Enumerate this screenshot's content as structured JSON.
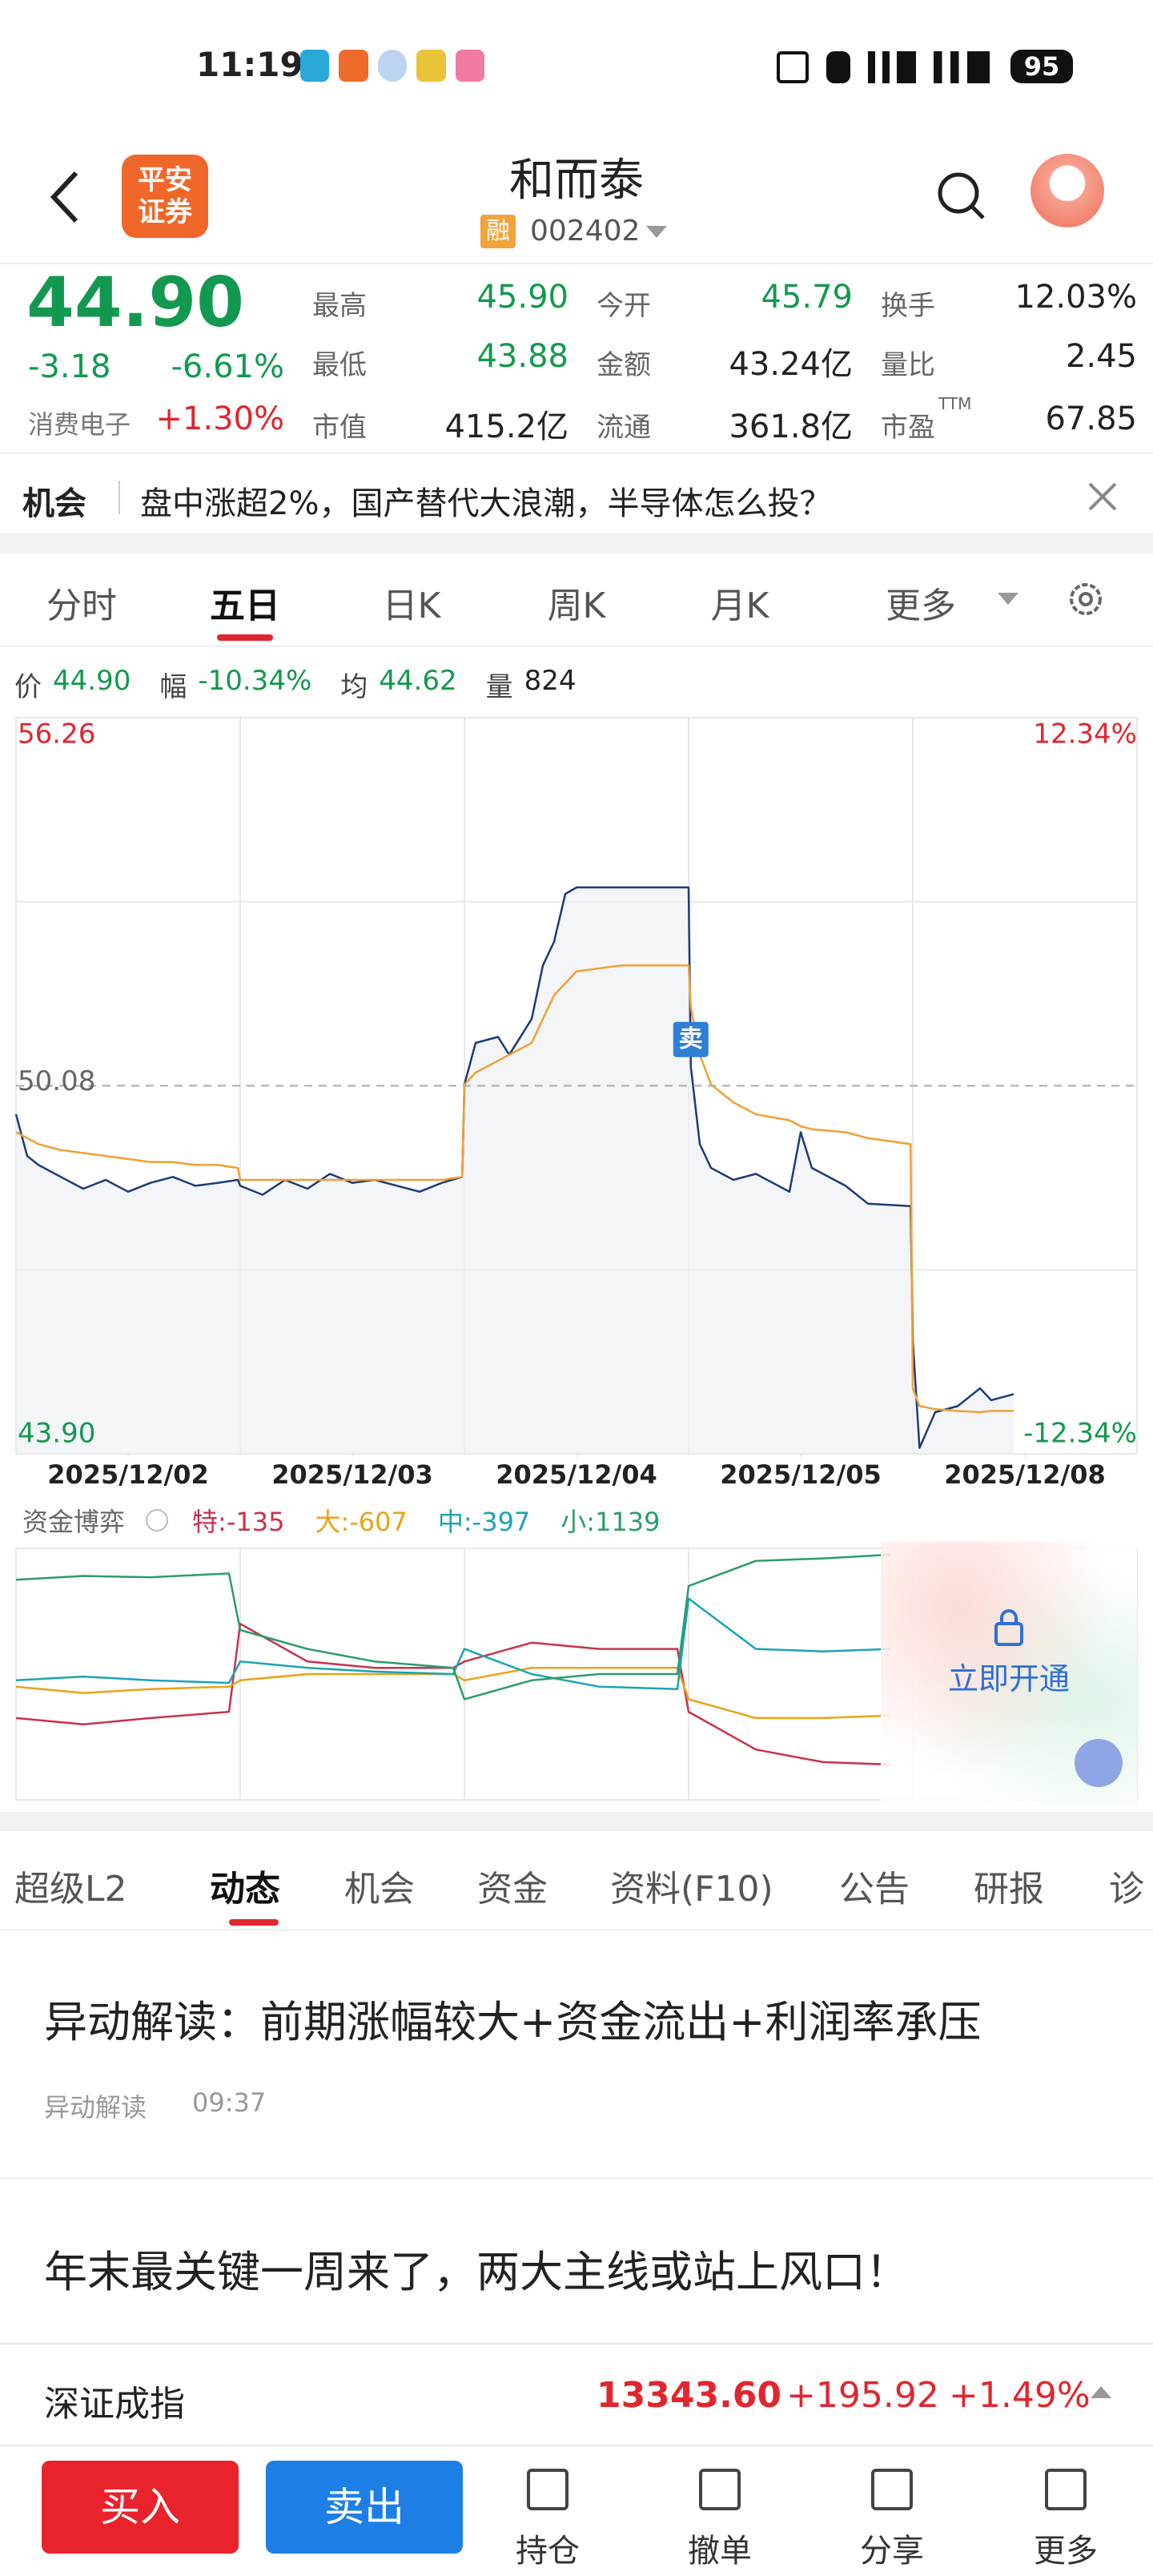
{
  "status_bar": {
    "time": "11:19",
    "battery": "95"
  },
  "header": {
    "logo": [
      "平安",
      "证券"
    ],
    "title": "和而泰",
    "badge": "融",
    "code": "002402"
  },
  "quote": {
    "price": "44.90",
    "change": "-3.18",
    "change_pct": "-6.61%",
    "sector": "消费电子",
    "sector_change": "+1.30%",
    "stats": [
      {
        "label": "最高",
        "value": "45.90"
      },
      {
        "label": "今开",
        "value": "45.79"
      },
      {
        "label": "换手",
        "value": "12.03%"
      },
      {
        "label": "最低",
        "value": "43.88"
      },
      {
        "label": "金额",
        "value": "43.24亿"
      },
      {
        "label": "量比",
        "value": "2.45"
      },
      {
        "label": "市值",
        "value": "415.2亿"
      },
      {
        "label": "流通",
        "value": "361.8亿"
      },
      {
        "label": "市盈",
        "sup": "TTM",
        "value": "67.85"
      }
    ]
  },
  "banner": {
    "tag": "机会",
    "text": "盘中涨超2%，国产替代大浪潮，半导体怎么投？"
  },
  "chart_tabs": {
    "items": [
      "分时",
      "五日",
      "日K",
      "周K",
      "月K",
      "更多"
    ],
    "active": 1
  },
  "chart_info": [
    {
      "label": "价",
      "value": "44.90"
    },
    {
      "label": "幅",
      "value": "-10.34%"
    },
    {
      "label": "均",
      "value": "44.62"
    },
    {
      "label": "量",
      "value": "824"
    }
  ],
  "chart_data": [
    {
      "type": "line",
      "x": [
        0,
        0.05,
        0.1,
        0.2,
        0.3,
        0.4,
        0.5,
        0.6,
        0.7,
        0.8,
        0.9,
        0.99,
        1,
        1.1,
        1.2,
        1.3,
        1.4,
        1.5,
        1.6,
        1.7,
        1.8,
        1.9,
        1.99,
        2,
        2.05,
        2.15,
        2.2,
        2.3,
        2.35,
        2.4,
        2.45,
        2.5,
        2.7,
        2.99,
        3,
        3.01,
        3.05,
        3.1,
        3.2,
        3.3,
        3.45,
        3.5,
        3.55,
        3.7,
        3.8,
        3.99,
        4,
        4.03,
        4.1,
        4.2,
        4.3,
        4.35,
        4.45
      ],
      "xlim": [
        0,
        5
      ],
      "xticks": [
        {
          "value": 0.5,
          "label": "2025/12/02"
        },
        {
          "value": 1.5,
          "label": "2025/12/03"
        },
        {
          "value": 2.5,
          "label": "2025/12/04"
        },
        {
          "value": 3.5,
          "label": "2025/12/05"
        },
        {
          "value": 4.5,
          "label": "2025/12/08"
        }
      ],
      "ylim": [
        43.9,
        56.26
      ],
      "yticks": [
        56.26,
        50.08,
        {
          "value": 43.9,
          "label": "43.90"
        }
      ],
      "y2lim": [
        -12.34,
        12.34
      ],
      "y2ticks": [
        {
          "value": 12.34,
          "label": "12.34%"
        },
        {
          "value": -12.34,
          "label": "-12.34%"
        }
      ],
      "sell_marker": "卖",
      "series": [
        {
          "color": "#1d3a7a",
          "area": true,
          "values": [
            49.6,
            48.9,
            48.75,
            48.55,
            48.35,
            48.5,
            48.3,
            48.45,
            48.55,
            48.4,
            48.45,
            48.5,
            48.4,
            48.25,
            48.5,
            48.35,
            48.6,
            48.45,
            48.5,
            48.4,
            48.3,
            48.45,
            48.55,
            50.1,
            50.8,
            50.9,
            50.6,
            51.2,
            52.1,
            52.5,
            53.3,
            53.41,
            53.41,
            53.41,
            53.41,
            50.4,
            49.1,
            48.7,
            48.5,
            48.6,
            48.3,
            49.3,
            48.7,
            48.4,
            48.1,
            48.06,
            45.8,
            44.0,
            44.6,
            44.7,
            45.0,
            44.8,
            44.9
          ]
        },
        {
          "color": "#f0a030",
          "values": [
            49.3,
            49.2,
            49.1,
            49.0,
            48.95,
            48.9,
            48.85,
            48.8,
            48.8,
            48.75,
            48.75,
            48.7,
            48.5,
            48.5,
            48.5,
            48.5,
            48.5,
            48.5,
            48.5,
            48.5,
            48.5,
            48.5,
            48.55,
            50.1,
            50.3,
            50.5,
            50.6,
            50.8,
            51.2,
            51.6,
            51.8,
            52.0,
            52.1,
            52.1,
            52.1,
            51.4,
            50.6,
            50.1,
            49.8,
            49.6,
            49.5,
            49.4,
            49.35,
            49.3,
            49.2,
            49.1,
            45.0,
            44.7,
            44.65,
            44.62,
            44.6,
            44.62,
            44.62
          ]
        }
      ]
    },
    {
      "type": "line",
      "title": "资金博弈",
      "x": [
        0,
        0.3,
        0.6,
        0.95,
        1,
        1.3,
        1.6,
        1.95,
        2,
        2.3,
        2.6,
        2.95,
        3,
        3.3,
        3.6,
        3.9
      ],
      "xlim": [
        0,
        5
      ],
      "ylim": [
        -1,
        1
      ],
      "unlock": "立即开通",
      "series": [
        {
          "name": "特:",
          "total": -135,
          "color": "#c8324b",
          "values": [
            -0.35,
            -0.4,
            -0.35,
            -0.3,
            0.4,
            0.1,
            0.05,
            0.05,
            0.1,
            0.25,
            0.2,
            0.2,
            -0.3,
            -0.6,
            -0.7,
            -0.72
          ]
        },
        {
          "name": "大:",
          "total": -607,
          "color": "#e8a317",
          "values": [
            -0.1,
            -0.15,
            -0.12,
            -0.1,
            -0.05,
            0.0,
            0.0,
            0.0,
            -0.05,
            0.05,
            0.05,
            0.05,
            -0.2,
            -0.35,
            -0.35,
            -0.33
          ]
        },
        {
          "name": "中:",
          "total": -397,
          "color": "#1aa3b5",
          "values": [
            -0.05,
            -0.02,
            -0.05,
            -0.07,
            0.1,
            0.05,
            0.02,
            0.0,
            0.2,
            0.0,
            -0.1,
            -0.12,
            0.6,
            0.2,
            0.18,
            0.2
          ]
        },
        {
          "name": "小:",
          "total": 1139,
          "color": "#2a9d6a",
          "values": [
            0.75,
            0.78,
            0.77,
            0.8,
            0.35,
            0.2,
            0.1,
            0.05,
            -0.2,
            -0.05,
            0.0,
            0.0,
            0.7,
            0.9,
            0.92,
            0.95
          ]
        }
      ]
    }
  ],
  "content_tabs": {
    "items": [
      "超级L2",
      "动态",
      "机会",
      "资金",
      "资料(F10)",
      "公告",
      "研报",
      "诊"
    ],
    "active": 1
  },
  "news": [
    {
      "title": "异动解读：前期涨幅较大+资金流出+利润率承压",
      "source": "异动解读",
      "time": "09:37"
    },
    {
      "title": "年末最关键一周来了，两大主线或站上风口！"
    }
  ],
  "index_bar": {
    "name": "深证成指",
    "value": "13343.60",
    "change": "+195.92",
    "change_pct": "+1.49%"
  },
  "bottom_bar": {
    "buy": "买入",
    "sell": "卖出",
    "actions": [
      "持仓",
      "撤单",
      "分享",
      "更多"
    ]
  }
}
